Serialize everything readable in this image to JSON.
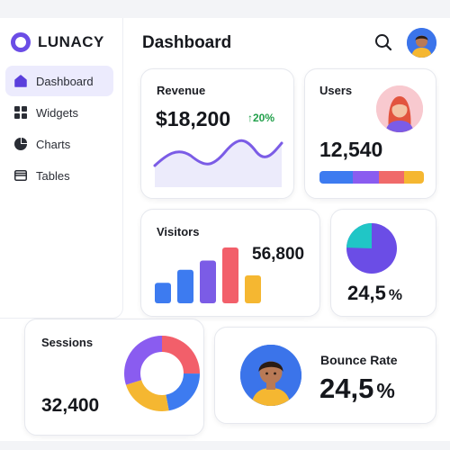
{
  "brand": {
    "name": "LUNACY",
    "accent": "#6b4de6"
  },
  "sidebar": {
    "items": [
      {
        "label": "Dashboard",
        "icon": "home-icon",
        "active": true
      },
      {
        "label": "Widgets",
        "icon": "grid-icon",
        "active": false
      },
      {
        "label": "Charts",
        "icon": "pie-chart-icon",
        "active": false
      },
      {
        "label": "Tables",
        "icon": "table-icon",
        "active": false
      }
    ]
  },
  "header": {
    "title": "Dashboard",
    "search_icon": "search-icon",
    "avatar": "user-avatar"
  },
  "cards": {
    "revenue": {
      "title": "Revenue",
      "value": "$18,200",
      "change": "20%",
      "trend_color": "#22a04b",
      "wave_color": "#7b5ce6"
    },
    "users": {
      "title": "Users",
      "value": "12,540",
      "progress_colors": [
        "#3d7bf0",
        "#8a5cf0",
        "#f06a6a",
        "#f5b731"
      ]
    },
    "visitors": {
      "title": "Visitors",
      "value": "56,800",
      "bars": [
        {
          "value": 2.2,
          "color": "#3d7bf0"
        },
        {
          "value": 3.6,
          "color": "#3d7bf0"
        },
        {
          "value": 4.6,
          "color": "#7b5ce6"
        },
        {
          "value": 6.0,
          "color": "#f25f6a"
        },
        {
          "value": 3.0,
          "color": "#f5b731"
        }
      ]
    },
    "pie": {
      "value": "24,5",
      "unit": "%",
      "share": 0.245,
      "colors": [
        "#20c6c6",
        "#6b4de6"
      ]
    },
    "sessions": {
      "title": "Sessions",
      "value": "32,400",
      "donut": [
        {
          "value": 0.25,
          "color": "#f25f6a"
        },
        {
          "value": 0.22,
          "color": "#3d7bf0"
        },
        {
          "value": 0.23,
          "color": "#f5b731"
        },
        {
          "value": 0.3,
          "color": "#8a5cf0"
        }
      ]
    },
    "bounce": {
      "title": "Bounce Rate",
      "value": "24,5",
      "unit": "%"
    }
  }
}
